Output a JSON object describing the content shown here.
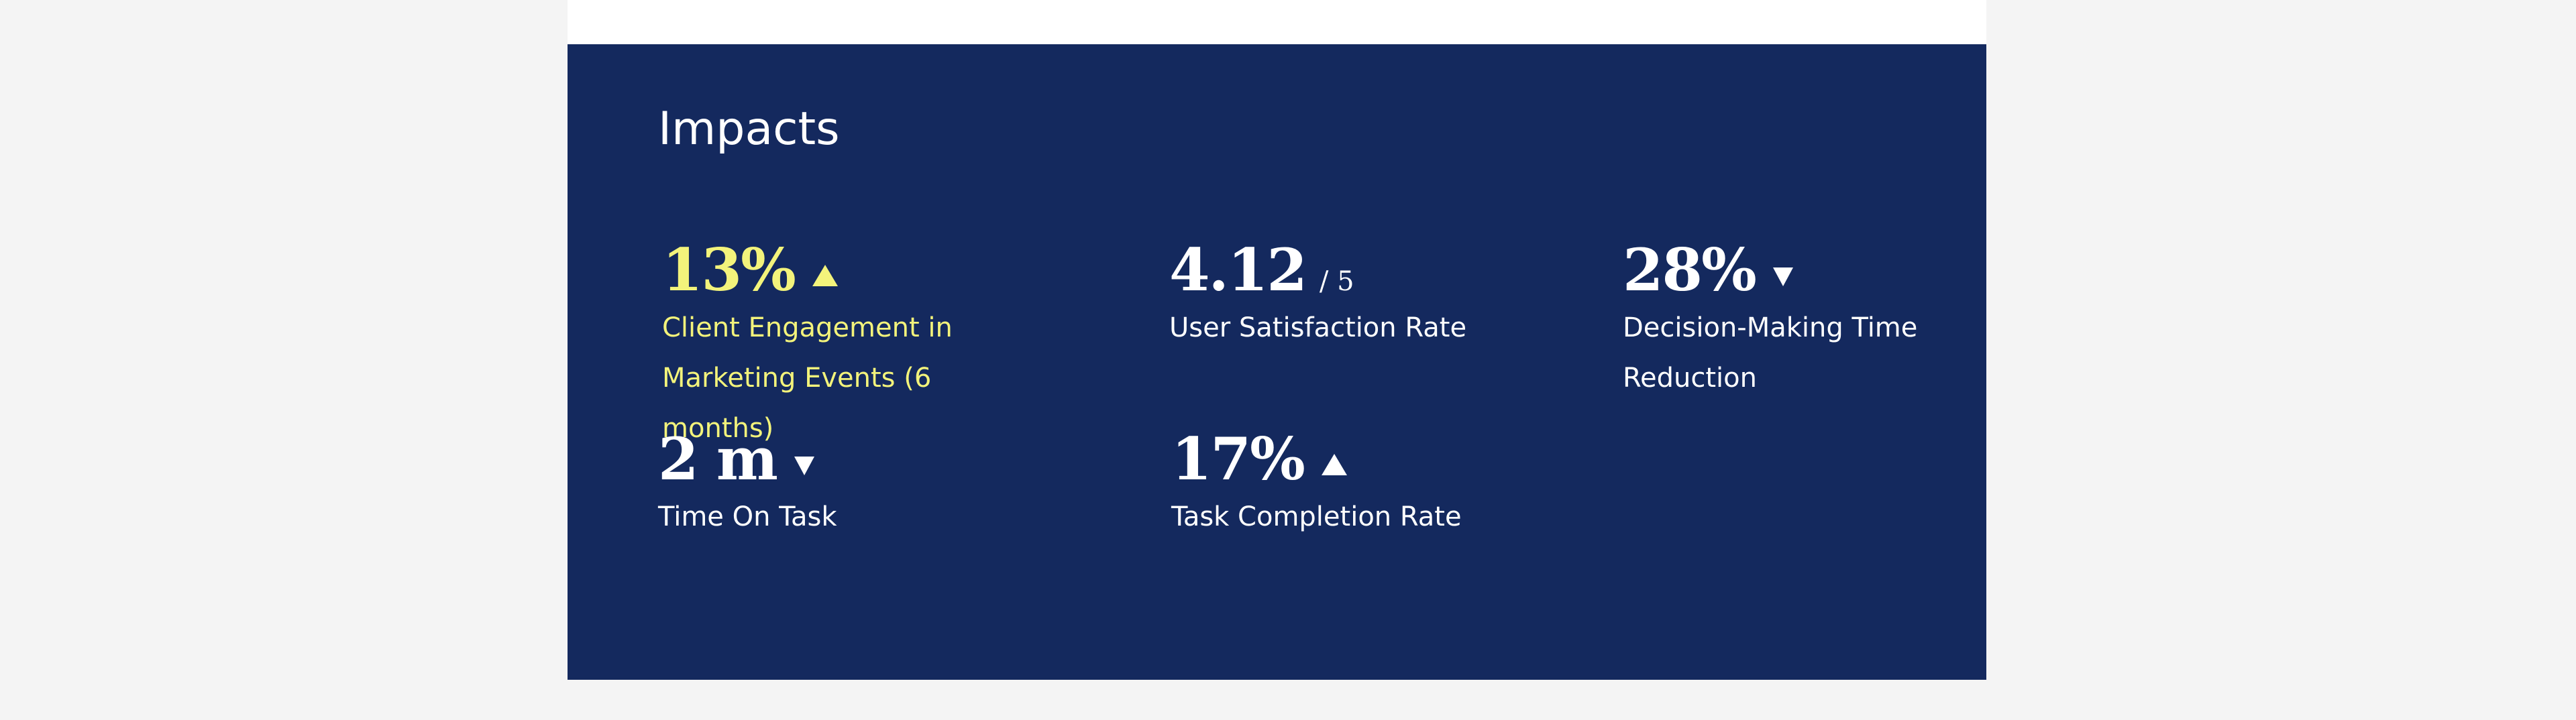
{
  "section": {
    "title": "Impacts"
  },
  "colors": {
    "page_background": "#f4f4f4",
    "panel_background": "#14295e",
    "text": "#ffffff",
    "highlight": "#f3f37b"
  },
  "metrics": [
    {
      "value": "13%",
      "trend": "up",
      "trend_icon": "triangle-up-icon",
      "label": "Client Engagement in Marketing Events (6 months)",
      "highlighted": true
    },
    {
      "value": "4.12",
      "scale": "/ 5",
      "label": "User Satisfaction Rate"
    },
    {
      "value": "28%",
      "trend": "down",
      "trend_icon": "triangle-down-icon",
      "label": "Decision-Making Time Reduction"
    },
    {
      "value": "2 m",
      "trend": "down",
      "trend_icon": "triangle-down-icon",
      "label": "Time On Task"
    },
    {
      "value": "17%",
      "trend": "up",
      "trend_icon": "triangle-up-icon",
      "label": "Task Completion Rate"
    }
  ]
}
